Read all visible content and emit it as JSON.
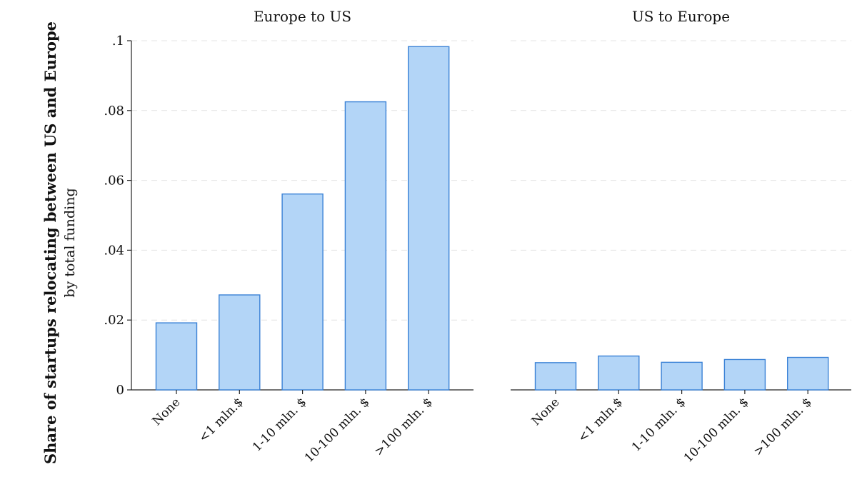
{
  "chart_data": {
    "type": "bar",
    "ylabel": "Share of startups relocating between US and Europe",
    "ylabel_sub": "by total funding",
    "ylim": [
      0,
      0.1
    ],
    "yticks": [
      {
        "value": 0,
        "label": "0"
      },
      {
        "value": 0.02,
        "label": ".02"
      },
      {
        "value": 0.04,
        "label": ".04"
      },
      {
        "value": 0.06,
        "label": ".06"
      },
      {
        "value": 0.08,
        "label": ".08"
      },
      {
        "value": 0.1,
        "label": ".1"
      }
    ],
    "grid": true,
    "bar_color": "#b3d5f7",
    "bar_edge_color": "#3b82d6",
    "panels": [
      {
        "title": "Europe to US",
        "categories": [
          "None",
          "<1 mln.$",
          "1-10 mln. $",
          "10-100 mln. $",
          ">100 mln. $"
        ],
        "values": [
          0.0192,
          0.0272,
          0.0561,
          0.0825,
          0.0983
        ]
      },
      {
        "title": "US to Europe",
        "categories": [
          "None",
          "<1 mln.$",
          "1-10 mln. $",
          "10-100 mln. $",
          ">100 mln. $"
        ],
        "values": [
          0.0078,
          0.0097,
          0.0079,
          0.0087,
          0.0093
        ]
      }
    ]
  }
}
